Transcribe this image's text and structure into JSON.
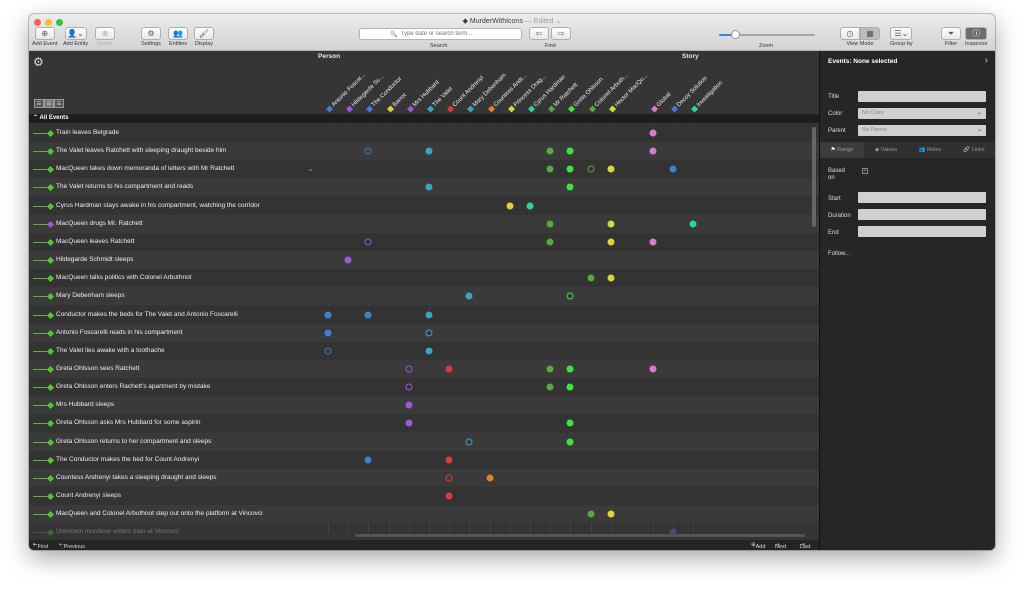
{
  "window": {
    "title": "MurderWithIcons",
    "edited": "— Edited ⌄"
  },
  "toolbar": {
    "add_event": "Add Event",
    "add_entity": "Add Entity",
    "delete": "Delete",
    "settings": "Settings",
    "entities": "Entities",
    "display": "Display",
    "search_placeholder": "Type date or search term...",
    "search": "Search",
    "find": "Find",
    "zoom": "Zoom",
    "zoom_level": 0.17,
    "view_mode": "View Mode",
    "group_by": "Group by",
    "filter": "Filter",
    "inspector": "Inspector"
  },
  "groups": {
    "person": "Person",
    "story": "Story"
  },
  "all_events": "All Events",
  "columns": [
    {
      "name": "Antonio Foscar...",
      "color": "#3d7fd0"
    },
    {
      "name": "Hildegarde Sc...",
      "color": "#9b59d9"
    },
    {
      "name": "The Conductor",
      "color": "#3d7fd0"
    },
    {
      "name": "Barrot",
      "color": "#e0d03a"
    },
    {
      "name": "Mrs Hubbard",
      "color": "#9b59d9"
    },
    {
      "name": "The Valet",
      "color": "#3ba3c9"
    },
    {
      "name": "Count Andrenyi",
      "color": "#e03a3a"
    },
    {
      "name": "Mary Debenham",
      "color": "#3ba3c9"
    },
    {
      "name": "Countess Andr...",
      "color": "#e0812a"
    },
    {
      "name": "Princess Drag...",
      "color": "#e0d03a"
    },
    {
      "name": "Cyrus Hardman",
      "color": "#2ed2a8"
    },
    {
      "name": "Mr Ratchett",
      "color": "#58a83b"
    },
    {
      "name": "Greta Ohlsson",
      "color": "#3ee63a"
    },
    {
      "name": "Colonel Arbuth...",
      "color": "#58a83b"
    },
    {
      "name": "Hector MacQu...",
      "color": "#d8d83a"
    },
    {
      "name": "Global",
      "color": "#d97ad0"
    },
    {
      "name": "Decoy Solution",
      "color": "#3d7fd0"
    },
    {
      "name": "Investigation",
      "color": "#2ed2a8"
    }
  ],
  "events": [
    {
      "label": "Train leaves Belgrade",
      "dots": [
        [
          15,
          "f"
        ]
      ]
    },
    {
      "label": "The Valet leaves Ratchett with sleeping draught beside him",
      "dots": [
        [
          2,
          "o"
        ],
        [
          5,
          "f"
        ],
        [
          11,
          "f"
        ],
        [
          12,
          "f"
        ],
        [
          15,
          "f"
        ]
      ]
    },
    {
      "label": "MacQueen takes down memoranda of letters with Mr Ratchett",
      "dots": [
        [
          11,
          "f"
        ],
        [
          12,
          "f"
        ],
        [
          13,
          "o"
        ],
        [
          14,
          "f"
        ],
        [
          16,
          "f"
        ]
      ],
      "chevron": "⌄"
    },
    {
      "label": "The Valet returns to his compartment and reads",
      "dots": [
        [
          5,
          "f"
        ],
        [
          12,
          "f"
        ]
      ]
    },
    {
      "label": "Cyrus Hardman stays awake in his compartment, watching the corridor",
      "dots": [
        [
          9,
          "f"
        ],
        [
          10,
          "f"
        ]
      ]
    },
    {
      "label": "MacQueen drugs Mr. Ratchett",
      "dots": [
        [
          11,
          "f"
        ],
        [
          14,
          "f"
        ],
        [
          17,
          "f"
        ]
      ],
      "diamond": "#9b59d9"
    },
    {
      "label": "MacQueen leaves Ratchett",
      "dots": [
        [
          2,
          "o"
        ],
        [
          11,
          "f"
        ],
        [
          14,
          "f"
        ],
        [
          15,
          "f"
        ]
      ]
    },
    {
      "label": "Hildegarde Schmidt sleeps",
      "dots": [
        [
          1,
          "f"
        ]
      ]
    },
    {
      "label": "MacQueen talks politics with Colonel Arbuthnot",
      "dots": [
        [
          13,
          "f"
        ],
        [
          14,
          "f"
        ]
      ]
    },
    {
      "label": "Mary Debenham sleeps",
      "dots": [
        [
          7,
          "f"
        ],
        [
          12,
          "o"
        ]
      ]
    },
    {
      "label": "Conductor makes the beds for The Valet and Antonio Foscarelli",
      "dots": [
        [
          0,
          "f"
        ],
        [
          2,
          "f"
        ],
        [
          5,
          "f"
        ]
      ]
    },
    {
      "label": "Antonio Foscarelli reads in his compartment",
      "dots": [
        [
          0,
          "f"
        ],
        [
          5,
          "o"
        ]
      ]
    },
    {
      "label": "The Valet lies awake with a toothache",
      "dots": [
        [
          0,
          "o"
        ],
        [
          5,
          "f"
        ]
      ]
    },
    {
      "label": "Greta Ohlsson sees Ratchett",
      "dots": [
        [
          4,
          "o"
        ],
        [
          6,
          "f"
        ],
        [
          11,
          "f"
        ],
        [
          12,
          "f"
        ],
        [
          15,
          "f"
        ]
      ]
    },
    {
      "label": "Greta Ohlsson enters Rachett's apartment by mistake",
      "dots": [
        [
          4,
          "o"
        ],
        [
          11,
          "f"
        ],
        [
          12,
          "f"
        ]
      ]
    },
    {
      "label": "Mrs Hubbard sleeps",
      "dots": [
        [
          4,
          "f"
        ]
      ]
    },
    {
      "label": "Greta Ohlsson asks Mrs Hubbard for some aspirin",
      "dots": [
        [
          4,
          "f"
        ],
        [
          12,
          "f"
        ]
      ]
    },
    {
      "label": "Greta Ohlsson returns to her compartment and sleeps",
      "dots": [
        [
          7,
          "o"
        ],
        [
          12,
          "f"
        ]
      ]
    },
    {
      "label": "The Conductor makes the bed for Count Andrenyi",
      "dots": [
        [
          2,
          "f"
        ],
        [
          6,
          "f"
        ]
      ]
    },
    {
      "label": "Countess Andrenyi takes a sleeping draught and sleeps",
      "dots": [
        [
          6,
          "o"
        ],
        [
          8,
          "f"
        ]
      ]
    },
    {
      "label": "Count Andrenyi sleeps",
      "dots": [
        [
          6,
          "f"
        ]
      ]
    },
    {
      "label": "MacQueen and Colonel Arbuthnot step out onto the platform at Vincovci",
      "dots": [
        [
          13,
          "f"
        ],
        [
          14,
          "f"
        ]
      ]
    },
    {
      "label": "Unknown murderer enters train at Vincovci",
      "dots": [
        [
          16,
          "f"
        ]
      ],
      "dim": true
    }
  ],
  "footer": {
    "first": "First",
    "previous": "Previous",
    "add": "Add",
    "next": "Next",
    "last": "Last"
  },
  "inspector": {
    "title": "Events: None selected",
    "title_label": "Title",
    "color_label": "Color",
    "color_value": "No Color",
    "parent_label": "Parent",
    "parent_value": "No Parent",
    "tabs": [
      "Range",
      "Values",
      "Roles",
      "Links"
    ],
    "based_on": "Based on",
    "start": "Start",
    "duration": "Duration",
    "end": "End",
    "follow": "Follow..."
  }
}
